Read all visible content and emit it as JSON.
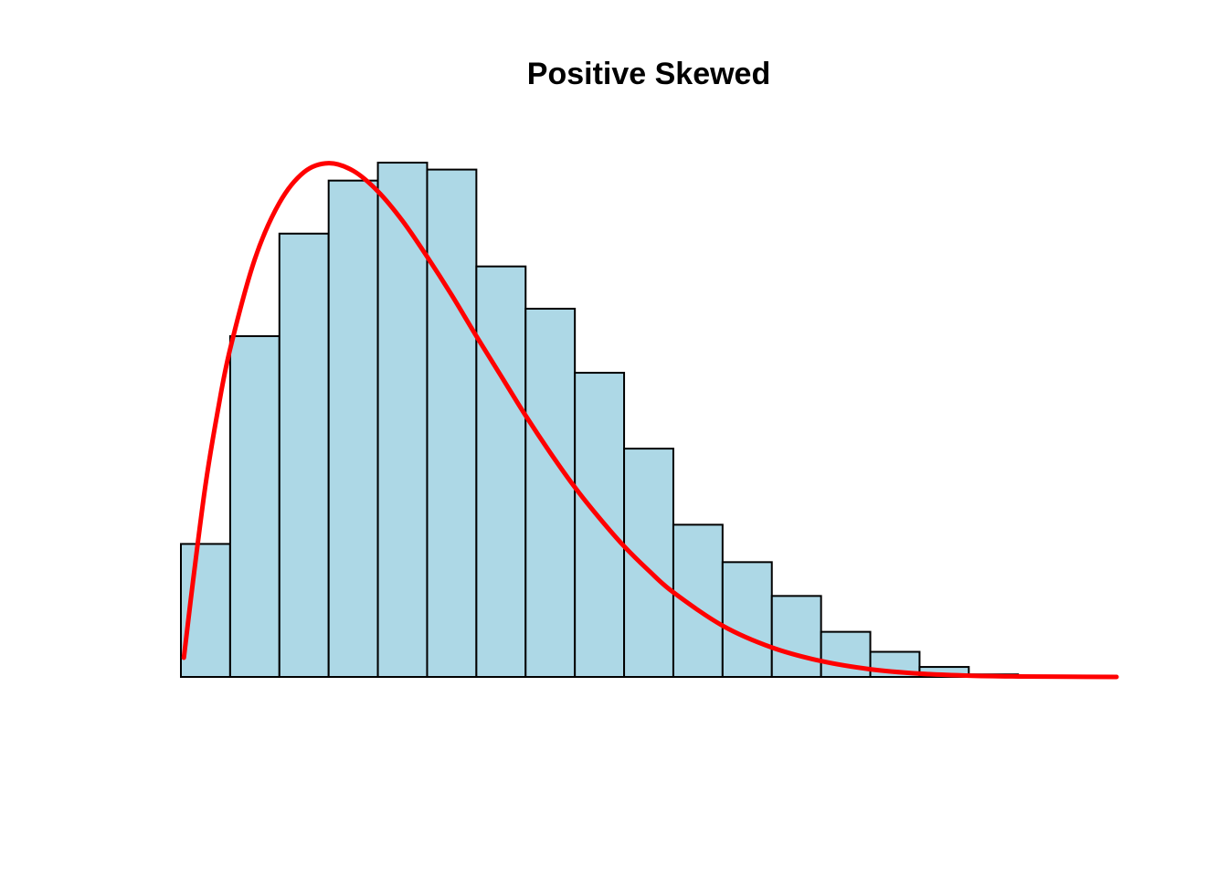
{
  "chart_data": {
    "type": "bar",
    "title": "Positive Skewed",
    "xlabel": "",
    "ylabel": "",
    "axes_visible": false,
    "grid": false,
    "bin_width": 1,
    "xlim": [
      0,
      19
    ],
    "ylim": [
      0,
      0.2
    ],
    "bins": [
      {
        "x0": 0,
        "x1": 1,
        "value": 0.0519
      },
      {
        "x0": 1,
        "x1": 2,
        "value": 0.133
      },
      {
        "x0": 2,
        "x1": 3,
        "value": 0.173
      },
      {
        "x0": 3,
        "x1": 4,
        "value": 0.1937
      },
      {
        "x0": 4,
        "x1": 5,
        "value": 0.2007
      },
      {
        "x0": 5,
        "x1": 6,
        "value": 0.198
      },
      {
        "x0": 6,
        "x1": 7,
        "value": 0.1602
      },
      {
        "x0": 7,
        "x1": 8,
        "value": 0.1437
      },
      {
        "x0": 8,
        "x1": 9,
        "value": 0.1187
      },
      {
        "x0": 9,
        "x1": 10,
        "value": 0.0891
      },
      {
        "x0": 10,
        "x1": 11,
        "value": 0.0594
      },
      {
        "x0": 11,
        "x1": 12,
        "value": 0.0448
      },
      {
        "x0": 12,
        "x1": 13,
        "value": 0.0316
      },
      {
        "x0": 13,
        "x1": 14,
        "value": 0.0176
      },
      {
        "x0": 14,
        "x1": 15,
        "value": 0.0098
      },
      {
        "x0": 15,
        "x1": 16,
        "value": 0.0039
      },
      {
        "x0": 16,
        "x1": 17,
        "value": 0.001
      }
    ],
    "density_curve": {
      "x": [
        0.06,
        0.25,
        0.5,
        0.75,
        1,
        1.5,
        2,
        2.5,
        3,
        3.5,
        4,
        4.5,
        5,
        5.5,
        6,
        6.5,
        7,
        7.5,
        8,
        8.5,
        9,
        9.5,
        10,
        11,
        12,
        13,
        14,
        15,
        16,
        17,
        18,
        19
      ],
      "y": [
        0.0075,
        0.038,
        0.075,
        0.104,
        0.128,
        0.163,
        0.185,
        0.197,
        0.2005,
        0.1975,
        0.1895,
        0.178,
        0.164,
        0.149,
        0.133,
        0.1175,
        0.102,
        0.0875,
        0.074,
        0.062,
        0.051,
        0.0415,
        0.033,
        0.02,
        0.0115,
        0.0062,
        0.003,
        0.0013,
        0.0005,
        0.0002,
        0.0001,
        0.0
      ]
    },
    "colors": {
      "bar_fill": "#add8e6",
      "bar_stroke": "#000000",
      "curve": "#ff0000",
      "title": "#000000"
    }
  }
}
